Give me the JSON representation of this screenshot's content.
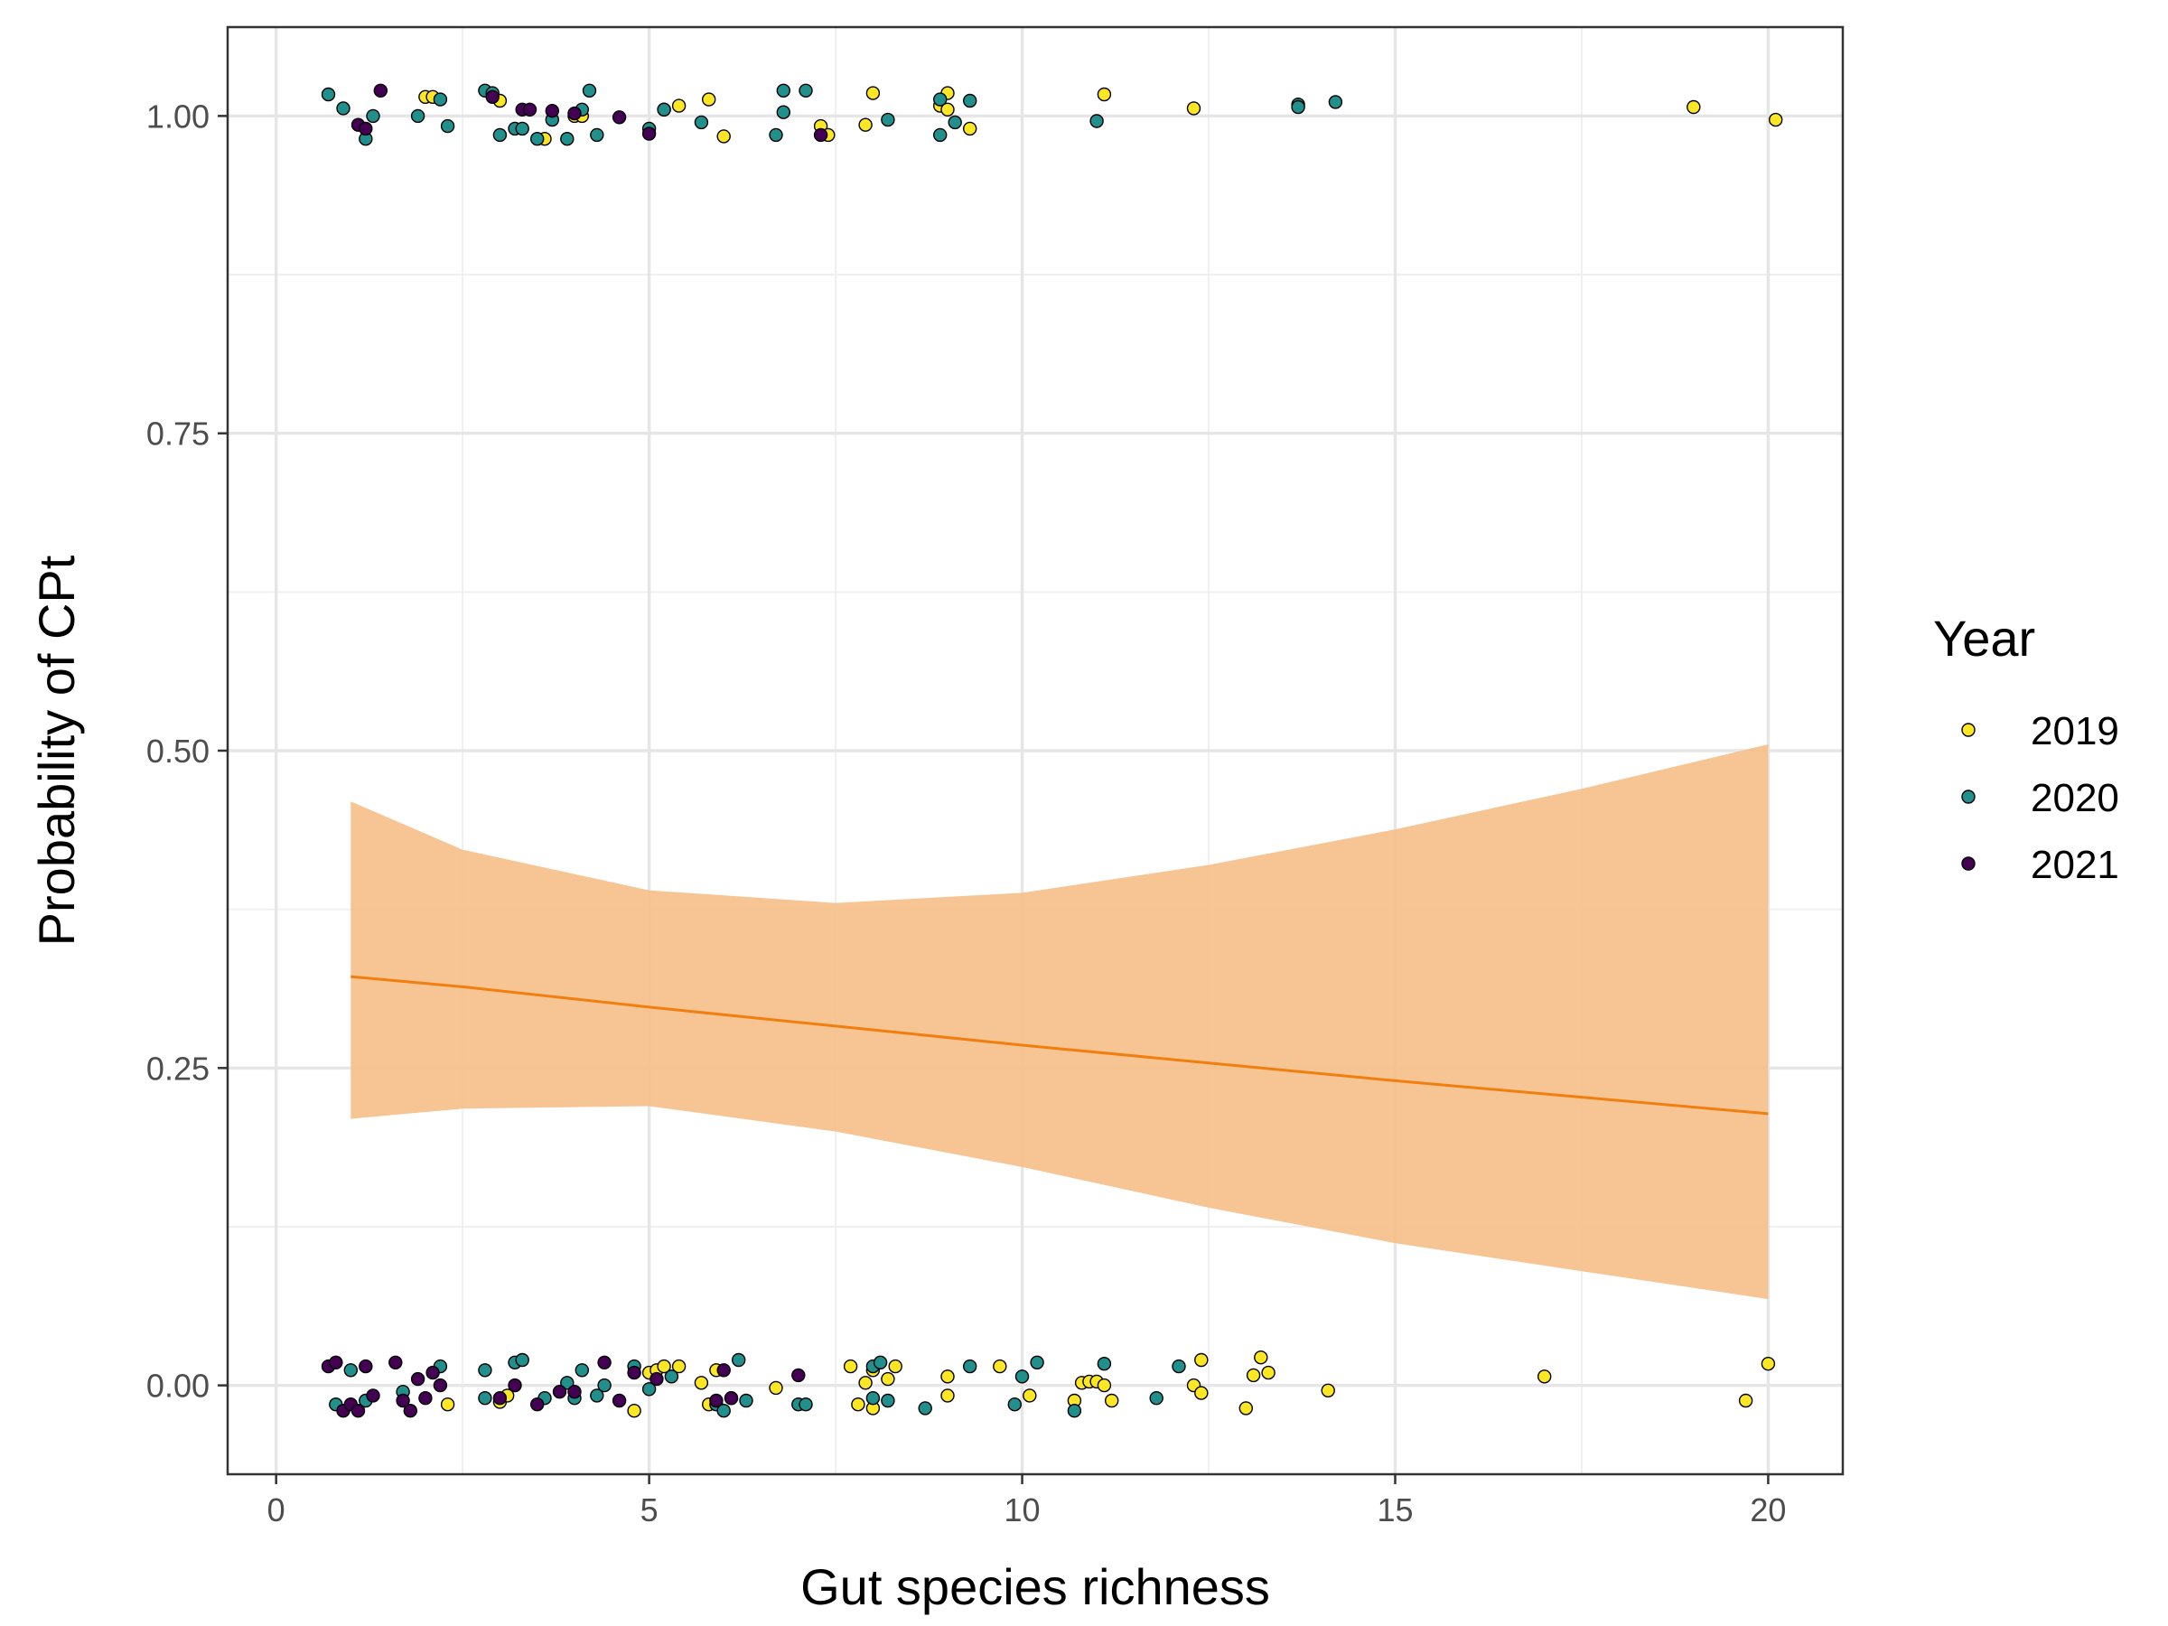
{
  "chart_data": {
    "type": "scatter",
    "title": "",
    "xlabel": "Gut species richness",
    "ylabel": "Probability of CPt",
    "xlim": [
      -0.65,
      21.0
    ],
    "ylim": [
      -0.07,
      1.07
    ],
    "xticks": [
      0,
      5,
      10,
      15,
      20
    ],
    "xtick_labels": [
      "0",
      "5",
      "10",
      "15",
      "20"
    ],
    "yticks": [
      0,
      0.25,
      0.5,
      0.75,
      1.0
    ],
    "ytick_labels": [
      "0.00",
      "0.25",
      "0.50",
      "0.75",
      "1.00"
    ],
    "grid": true,
    "legend": {
      "title": "Year",
      "placement": "right",
      "entries": [
        "2019",
        "2020",
        "2021"
      ]
    },
    "colors": {
      "2019": "#fde725",
      "2020": "#21908d",
      "2021": "#440154",
      "fit_line": "#f07f0f",
      "ci_band": "#f5c08a"
    },
    "fit": {
      "x": [
        1,
        2.5,
        5,
        7.5,
        10,
        12.5,
        15,
        17.5,
        20
      ],
      "y": [
        0.322,
        0.314,
        0.298,
        0.283,
        0.268,
        0.254,
        0.24,
        0.227,
        0.214
      ],
      "ci_lower": [
        0.21,
        0.218,
        0.22,
        0.2,
        0.172,
        0.14,
        0.112,
        0.09,
        0.068
      ],
      "ci_upper": [
        0.46,
        0.422,
        0.39,
        0.38,
        0.388,
        0.41,
        0.438,
        0.47,
        0.505
      ]
    },
    "series": [
      {
        "name": "2019",
        "points": [
          [
            2.0,
            1.015
          ],
          [
            2.1,
            1.015
          ],
          [
            3.0,
            1.012
          ],
          [
            3.6,
            0.982
          ],
          [
            4.0,
            1.0
          ],
          [
            4.1,
            1.0
          ],
          [
            5.2,
            1.005
          ],
          [
            5.4,
            1.008
          ],
          [
            5.8,
            1.013
          ],
          [
            6.0,
            0.984
          ],
          [
            7.3,
            0.992
          ],
          [
            7.4,
            0.985
          ],
          [
            7.9,
            0.993
          ],
          [
            8.0,
            1.018
          ],
          [
            8.9,
            1.008
          ],
          [
            9.0,
            1.018
          ],
          [
            9.0,
            1.005
          ],
          [
            9.3,
            0.99
          ],
          [
            11.1,
            1.017
          ],
          [
            12.3,
            1.006
          ],
          [
            19.0,
            1.007
          ],
          [
            20.1,
            0.997
          ],
          [
            2.3,
            -0.015
          ],
          [
            3.0,
            -0.013
          ],
          [
            3.1,
            -0.008
          ],
          [
            4.8,
            -0.02
          ],
          [
            5.0,
            0.01
          ],
          [
            5.1,
            0.012
          ],
          [
            5.2,
            0.015
          ],
          [
            5.4,
            0.015
          ],
          [
            5.7,
            0.002
          ],
          [
            5.8,
            -0.015
          ],
          [
            5.9,
            0.012
          ],
          [
            6.1,
            -0.01
          ],
          [
            6.7,
            -0.002
          ],
          [
            7.7,
            0.015
          ],
          [
            7.8,
            -0.015
          ],
          [
            7.9,
            0.002
          ],
          [
            8.0,
            0.012
          ],
          [
            8.0,
            -0.018
          ],
          [
            8.2,
            0.005
          ],
          [
            8.3,
            0.015
          ],
          [
            9.0,
            0.007
          ],
          [
            9.0,
            -0.008
          ],
          [
            9.7,
            0.015
          ],
          [
            10.1,
            -0.008
          ],
          [
            10.7,
            -0.012
          ],
          [
            10.8,
            0.002
          ],
          [
            10.9,
            0.003
          ],
          [
            11.0,
            0.003
          ],
          [
            11.1,
            0.0
          ],
          [
            11.2,
            -0.012
          ],
          [
            12.3,
            0.0
          ],
          [
            12.4,
            0.02
          ],
          [
            12.4,
            -0.006
          ],
          [
            13.0,
            -0.018
          ],
          [
            13.1,
            0.008
          ],
          [
            13.2,
            0.022
          ],
          [
            13.3,
            0.01
          ],
          [
            14.1,
            -0.004
          ],
          [
            17.0,
            0.007
          ],
          [
            19.7,
            -0.012
          ],
          [
            20.0,
            0.017
          ]
        ]
      },
      {
        "name": "2020",
        "points": [
          [
            0.7,
            1.017
          ],
          [
            0.9,
            1.006
          ],
          [
            1.2,
            0.982
          ],
          [
            1.3,
            1.0
          ],
          [
            1.9,
            1.0
          ],
          [
            2.2,
            1.013
          ],
          [
            2.3,
            0.992
          ],
          [
            2.8,
            1.02
          ],
          [
            2.9,
            1.018
          ],
          [
            3.0,
            0.985
          ],
          [
            3.2,
            0.99
          ],
          [
            3.3,
            0.99
          ],
          [
            3.5,
            0.982
          ],
          [
            3.7,
            0.997
          ],
          [
            3.9,
            0.982
          ],
          [
            4.1,
            1.005
          ],
          [
            4.2,
            1.02
          ],
          [
            4.3,
            0.985
          ],
          [
            5.0,
            0.99
          ],
          [
            5.2,
            1.005
          ],
          [
            5.7,
            0.995
          ],
          [
            6.7,
            0.985
          ],
          [
            6.8,
            1.02
          ],
          [
            6.8,
            1.003
          ],
          [
            7.1,
            1.02
          ],
          [
            8.2,
            0.997
          ],
          [
            8.9,
            1.013
          ],
          [
            8.9,
            0.985
          ],
          [
            9.1,
            0.995
          ],
          [
            9.3,
            1.012
          ],
          [
            11.0,
            0.996
          ],
          [
            13.7,
            1.009
          ],
          [
            13.7,
            1.007
          ],
          [
            14.2,
            1.011
          ],
          [
            0.8,
            -0.015
          ],
          [
            1.0,
            0.012
          ],
          [
            1.2,
            -0.012
          ],
          [
            1.7,
            -0.005
          ],
          [
            2.2,
            0.015
          ],
          [
            2.8,
            0.012
          ],
          [
            2.8,
            -0.01
          ],
          [
            3.2,
            0.018
          ],
          [
            3.3,
            0.02
          ],
          [
            3.6,
            -0.01
          ],
          [
            3.9,
            0.002
          ],
          [
            4.0,
            -0.01
          ],
          [
            4.1,
            0.012
          ],
          [
            4.3,
            -0.008
          ],
          [
            4.4,
            0.0
          ],
          [
            4.8,
            0.015
          ],
          [
            5.0,
            -0.003
          ],
          [
            5.3,
            0.007
          ],
          [
            5.9,
            -0.015
          ],
          [
            6.0,
            -0.02
          ],
          [
            6.2,
            0.02
          ],
          [
            6.3,
            -0.012
          ],
          [
            7.0,
            -0.015
          ],
          [
            7.1,
            -0.015
          ],
          [
            8.0,
            0.015
          ],
          [
            8.0,
            -0.01
          ],
          [
            8.1,
            0.018
          ],
          [
            8.2,
            -0.012
          ],
          [
            8.7,
            -0.018
          ],
          [
            9.3,
            0.015
          ],
          [
            9.9,
            -0.015
          ],
          [
            10.0,
            0.007
          ],
          [
            10.2,
            0.018
          ],
          [
            10.7,
            -0.02
          ],
          [
            11.1,
            0.017
          ],
          [
            11.8,
            -0.01
          ],
          [
            12.1,
            0.015
          ]
        ]
      },
      {
        "name": "2021",
        "points": [
          [
            1.1,
            0.993
          ],
          [
            1.2,
            0.99
          ],
          [
            1.4,
            1.02
          ],
          [
            2.9,
            1.015
          ],
          [
            3.3,
            1.005
          ],
          [
            3.4,
            1.005
          ],
          [
            3.7,
            1.004
          ],
          [
            4.0,
            1.002
          ],
          [
            4.6,
            0.999
          ],
          [
            5.0,
            0.986
          ],
          [
            7.3,
            0.985
          ],
          [
            0.7,
            0.015
          ],
          [
            0.8,
            0.018
          ],
          [
            0.9,
            -0.02
          ],
          [
            1.0,
            -0.015
          ],
          [
            1.1,
            -0.02
          ],
          [
            1.2,
            0.015
          ],
          [
            1.3,
            -0.008
          ],
          [
            1.6,
            0.018
          ],
          [
            1.7,
            -0.012
          ],
          [
            1.8,
            -0.02
          ],
          [
            1.9,
            0.005
          ],
          [
            2.0,
            -0.01
          ],
          [
            2.1,
            0.01
          ],
          [
            2.2,
            0.0
          ],
          [
            3.0,
            -0.01
          ],
          [
            3.2,
            0.0
          ],
          [
            3.5,
            -0.015
          ],
          [
            3.8,
            -0.005
          ],
          [
            4.0,
            -0.005
          ],
          [
            4.4,
            0.018
          ],
          [
            4.6,
            -0.012
          ],
          [
            4.8,
            0.01
          ],
          [
            5.1,
            0.005
          ],
          [
            5.9,
            -0.012
          ],
          [
            6.0,
            0.012
          ],
          [
            6.1,
            -0.01
          ],
          [
            7.0,
            0.008
          ]
        ]
      }
    ]
  }
}
